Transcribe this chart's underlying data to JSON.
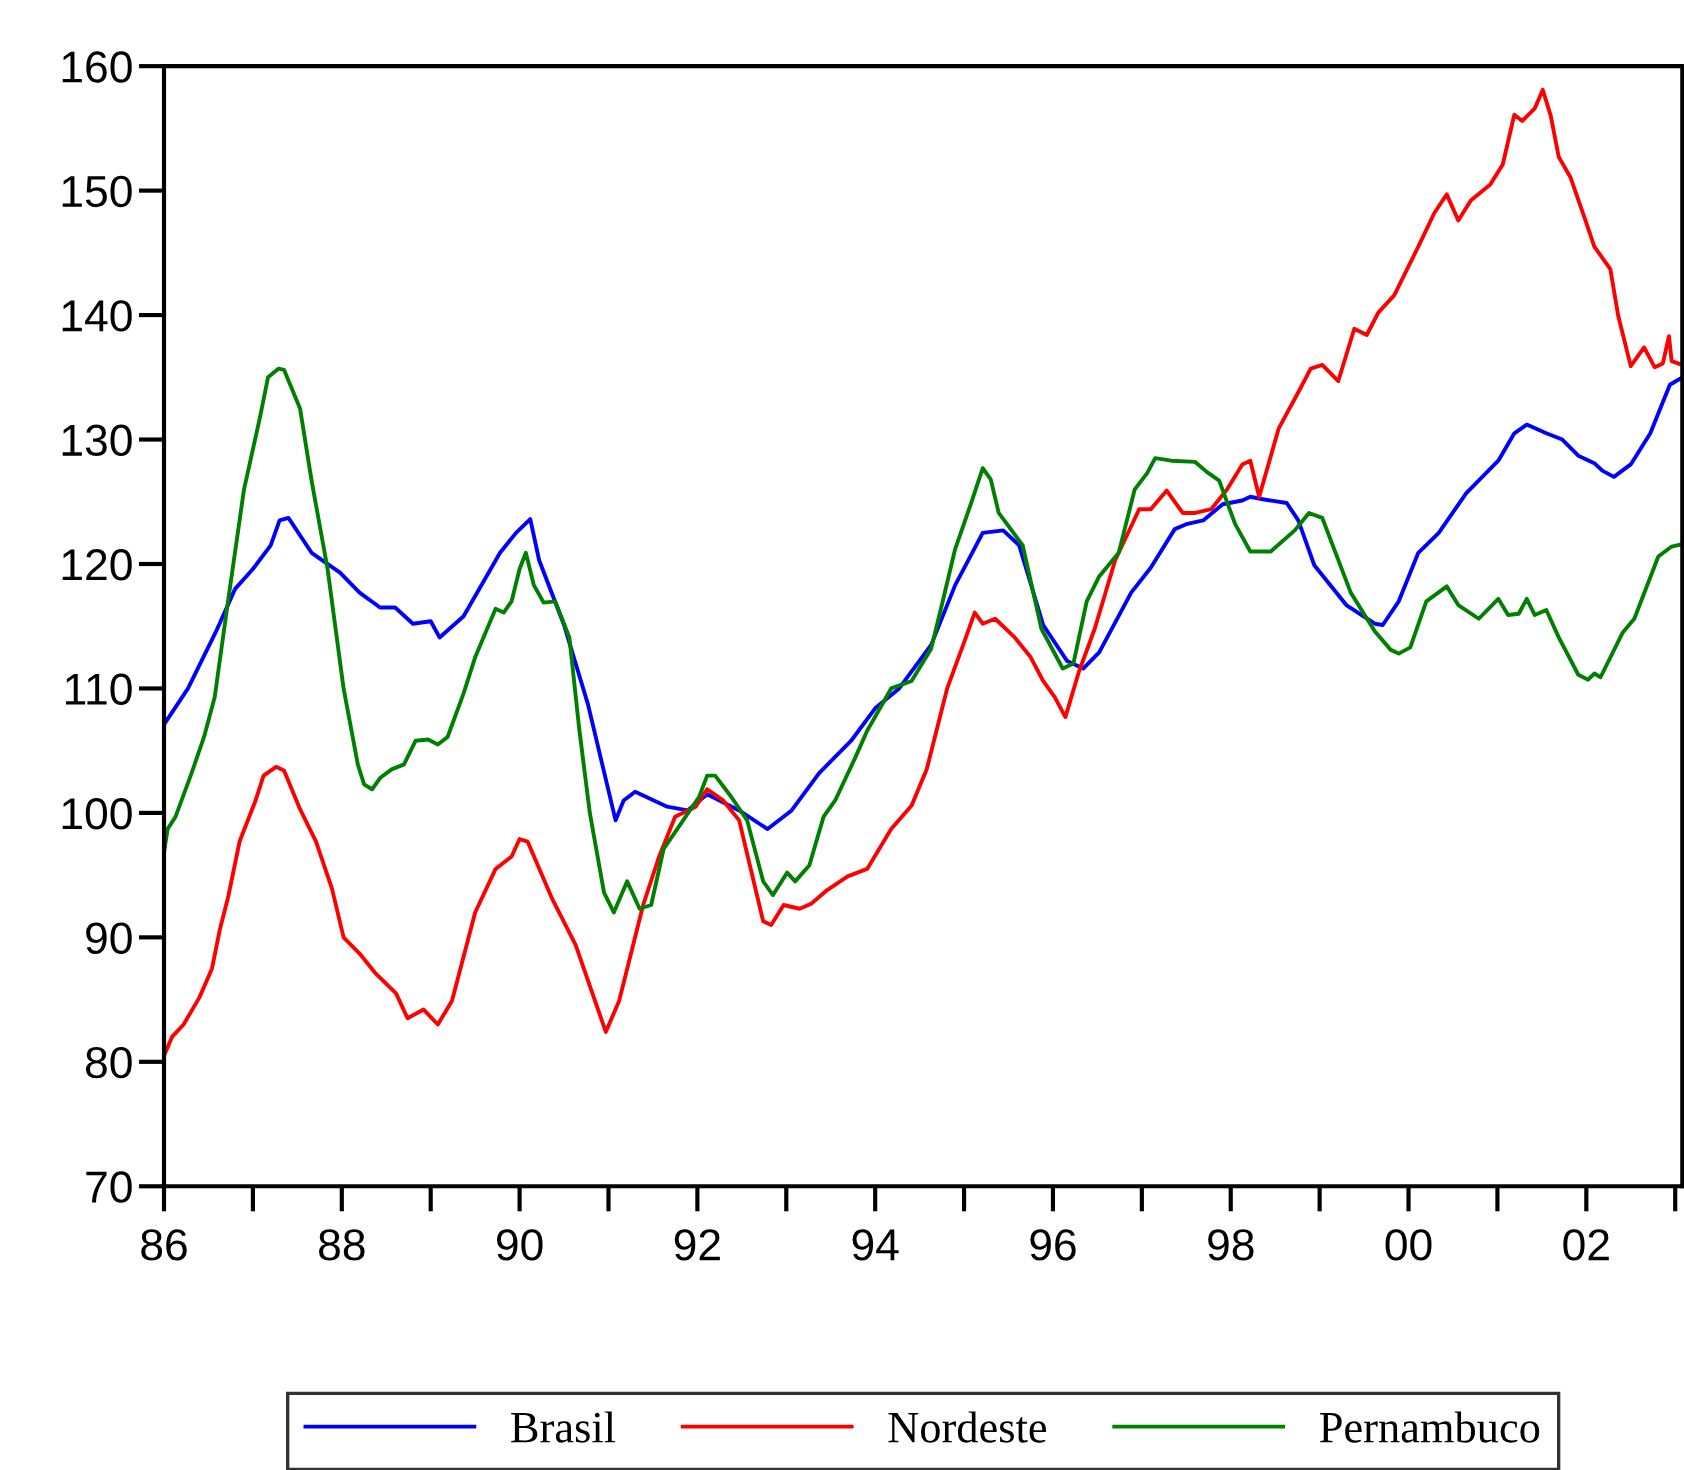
{
  "chart_data": {
    "type": "line",
    "xlim": [
      1986,
      2003.08
    ],
    "ylim": [
      70,
      160
    ],
    "yticks": [
      70,
      80,
      90,
      100,
      110,
      120,
      130,
      140,
      150,
      160
    ],
    "xticks": [
      {
        "value": 1986,
        "label": "86"
      },
      {
        "value": 1987,
        "label": null
      },
      {
        "value": 1988,
        "label": "88"
      },
      {
        "value": 1989,
        "label": null
      },
      {
        "value": 1990,
        "label": "90"
      },
      {
        "value": 1991,
        "label": null
      },
      {
        "value": 1992,
        "label": "92"
      },
      {
        "value": 1993,
        "label": null
      },
      {
        "value": 1994,
        "label": "94"
      },
      {
        "value": 1995,
        "label": null
      },
      {
        "value": 1996,
        "label": "96"
      },
      {
        "value": 1997,
        "label": null
      },
      {
        "value": 1998,
        "label": "98"
      },
      {
        "value": 1999,
        "label": null
      },
      {
        "value": 2000,
        "label": "00"
      },
      {
        "value": 2001,
        "label": null
      },
      {
        "value": 2002,
        "label": "02"
      },
      {
        "value": 2003,
        "label": null
      }
    ],
    "grid": false,
    "legend": "bottom",
    "line_style": "solid",
    "marker": "none",
    "series": [
      {
        "name": "Brasil",
        "color": "#0000ff",
        "x": [
          1986.0,
          1986.27,
          1986.58,
          1986.8,
          1987.0,
          1987.2,
          1987.3,
          1987.4,
          1987.66,
          1987.98,
          1988.2,
          1988.43,
          1988.6,
          1988.8,
          1989.0,
          1989.1,
          1989.37,
          1989.78,
          1989.96,
          1990.12,
          1990.22,
          1990.5,
          1990.77,
          1991.08,
          1991.17,
          1991.3,
          1991.66,
          1991.89,
          1992.11,
          1992.47,
          1992.79,
          1993.06,
          1993.37,
          1993.73,
          1994.0,
          1994.27,
          1994.63,
          1994.9,
          1995.21,
          1995.44,
          1995.62,
          1995.89,
          1996.16,
          1996.34,
          1996.52,
          1996.88,
          1997.1,
          1997.37,
          1997.5,
          1997.69,
          1997.91,
          1998.13,
          1998.22,
          1998.36,
          1998.63,
          1998.76,
          1998.94,
          1999.3,
          1999.62,
          1999.71,
          1999.89,
          2000.11,
          2000.34,
          2000.65,
          2001.01,
          2001.19,
          2001.33,
          2001.55,
          2001.73,
          2001.91,
          2002.09,
          2002.18,
          2002.31,
          2002.5,
          2002.72,
          2002.94,
          2003.08
        ],
        "values": [
          107.1,
          110,
          114.5,
          118,
          119.6,
          121.5,
          123.5,
          123.7,
          120.9,
          119.3,
          117.7,
          116.5,
          116.5,
          115.2,
          115.4,
          114.1,
          115.8,
          120.9,
          122.5,
          123.6,
          120.3,
          115.1,
          108.7,
          99.4,
          101,
          101.7,
          100.5,
          100.2,
          101.5,
          100.2,
          98.7,
          100.2,
          103.2,
          105.8,
          108.4,
          110,
          113.5,
          118.3,
          122.5,
          122.7,
          121.5,
          115.1,
          112.2,
          111.6,
          112.9,
          117.7,
          119.7,
          122.8,
          123.2,
          123.5,
          124.8,
          125.1,
          125.4,
          125.2,
          124.9,
          123.5,
          119.9,
          116.7,
          115.2,
          115.1,
          117,
          120.9,
          122.5,
          125.7,
          128.3,
          130.5,
          131.2,
          130.5,
          130,
          128.7,
          128.1,
          127.5,
          127,
          128,
          130.5,
          134.4,
          135
        ]
      },
      {
        "name": "Nordeste",
        "color": "#ff0000",
        "x": [
          1986.0,
          1986.09,
          1986.22,
          1986.4,
          1986.54,
          1986.63,
          1986.72,
          1986.85,
          1987.03,
          1987.12,
          1987.26,
          1987.35,
          1987.53,
          1987.71,
          1987.89,
          1988.02,
          1988.2,
          1988.38,
          1988.61,
          1988.74,
          1988.92,
          1989.08,
          1989.24,
          1989.5,
          1989.73,
          1989.91,
          1990.0,
          1990.09,
          1990.36,
          1990.63,
          1990.97,
          1991.12,
          1991.39,
          1991.57,
          1991.75,
          1991.98,
          1992.11,
          1992.29,
          1992.47,
          1992.74,
          1992.83,
          1992.97,
          1993.15,
          1993.28,
          1993.46,
          1993.69,
          1993.91,
          1994.18,
          1994.41,
          1994.58,
          1994.81,
          1994.99,
          1995.12,
          1995.21,
          1995.35,
          1995.57,
          1995.75,
          1995.89,
          1996.02,
          1996.14,
          1996.29,
          1996.47,
          1996.7,
          1996.97,
          1997.1,
          1997.28,
          1997.46,
          1997.6,
          1997.78,
          1997.96,
          1998.13,
          1998.22,
          1998.32,
          1998.54,
          1998.76,
          1998.9,
          1999.03,
          1999.21,
          1999.39,
          1999.53,
          1999.66,
          1999.84,
          2000.11,
          2000.29,
          2000.43,
          2000.56,
          2000.7,
          2000.92,
          2001.06,
          2001.19,
          2001.28,
          2001.42,
          2001.51,
          2001.6,
          2001.69,
          2001.82,
          2002.0,
          2002.09,
          2002.27,
          2002.36,
          2002.5,
          2002.65,
          2002.77,
          2002.86,
          2002.93,
          2002.96,
          2003.08
        ],
        "values": [
          80.5,
          82,
          83,
          85.2,
          87.5,
          90.7,
          93.2,
          97.7,
          101,
          103,
          103.7,
          103.4,
          100.3,
          97.7,
          93.9,
          90,
          88.7,
          87.1,
          85.5,
          83.5,
          84.2,
          83,
          84.9,
          92,
          95.5,
          96.5,
          97.9,
          97.7,
          93.2,
          89.4,
          82.4,
          84.9,
          92.6,
          96.5,
          99.7,
          100.5,
          101.9,
          101,
          99.4,
          91.3,
          91,
          92.6,
          92.3,
          92.7,
          93.8,
          94.9,
          95.5,
          98.7,
          100.6,
          103.5,
          110,
          113.5,
          116.1,
          115.2,
          115.6,
          114.1,
          112.5,
          110.6,
          109.3,
          107.7,
          111.3,
          114.8,
          120.3,
          124.4,
          124.4,
          125.9,
          124.1,
          124.1,
          124.4,
          126,
          128,
          128.3,
          125.4,
          130.9,
          133.8,
          135.7,
          136,
          134.7,
          138.9,
          138.4,
          140.2,
          141.6,
          145.5,
          148.2,
          149.7,
          147.6,
          149.2,
          150.5,
          152.1,
          156.1,
          155.6,
          156.6,
          158.1,
          156,
          152.7,
          151.1,
          147.4,
          145.5,
          143.7,
          139.9,
          135.9,
          137.4,
          135.8,
          136.1,
          138.3,
          136.3,
          136
        ]
      },
      {
        "name": "Pernambuco",
        "color": "#008000",
        "x": [
          1986.0,
          1986.04,
          1986.13,
          1986.31,
          1986.45,
          1986.57,
          1986.72,
          1986.9,
          1987.08,
          1987.17,
          1987.29,
          1987.35,
          1987.53,
          1987.66,
          1987.84,
          1988.02,
          1988.18,
          1988.25,
          1988.34,
          1988.43,
          1988.56,
          1988.7,
          1988.83,
          1988.97,
          1989.08,
          1989.19,
          1989.37,
          1989.5,
          1989.73,
          1989.82,
          1989.91,
          1990.0,
          1990.07,
          1990.16,
          1990.27,
          1990.4,
          1990.56,
          1990.67,
          1990.79,
          1990.95,
          1991.06,
          1991.21,
          1991.35,
          1991.48,
          1991.62,
          1991.84,
          1992.02,
          1992.11,
          1992.2,
          1992.38,
          1992.56,
          1992.74,
          1992.85,
          1993.01,
          1993.1,
          1993.26,
          1993.42,
          1993.55,
          1993.78,
          1993.91,
          1994.18,
          1994.41,
          1994.63,
          1994.76,
          1994.9,
          1995.08,
          1995.21,
          1995.3,
          1995.39,
          1995.66,
          1995.87,
          1996.11,
          1996.23,
          1996.38,
          1996.52,
          1996.74,
          1996.92,
          1997.06,
          1997.15,
          1997.33,
          1997.6,
          1997.73,
          1997.87,
          1998.05,
          1998.22,
          1998.45,
          1998.72,
          1998.88,
          1999.03,
          1999.35,
          1999.62,
          1999.8,
          1999.89,
          2000.02,
          2000.2,
          2000.43,
          2000.56,
          2000.79,
          2001.01,
          2001.12,
          2001.24,
          2001.33,
          2001.42,
          2001.55,
          2001.69,
          2001.91,
          2002.02,
          2002.09,
          2002.16,
          2002.41,
          2002.54,
          2002.81,
          2002.96,
          2003.08
        ],
        "values": [
          96.8,
          98.7,
          99.7,
          103.2,
          106.1,
          109.3,
          117,
          126,
          131.8,
          135,
          135.7,
          135.6,
          132.5,
          126.7,
          119.6,
          110,
          103.9,
          102.3,
          101.9,
          102.8,
          103.5,
          103.9,
          105.8,
          105.9,
          105.5,
          106.1,
          109.6,
          112.5,
          116.4,
          116.1,
          117,
          119.6,
          120.9,
          118.3,
          116.9,
          117,
          114.1,
          106.8,
          100,
          93.6,
          92,
          94.5,
          92.3,
          92.6,
          97.1,
          99.4,
          101.3,
          103,
          103,
          101.3,
          99.4,
          94.5,
          93.4,
          95.2,
          94.5,
          95.8,
          99.7,
          101,
          104.5,
          106.6,
          110,
          110.6,
          113.2,
          117,
          121.2,
          124.9,
          127.7,
          126.8,
          124.1,
          121.5,
          114.8,
          111.6,
          112,
          117,
          119,
          120.9,
          126,
          127.3,
          128.5,
          128.3,
          128.2,
          127.4,
          126.7,
          123.2,
          121,
          121,
          122.7,
          124.1,
          123.7,
          117.7,
          114.6,
          113.1,
          112.8,
          113.3,
          117,
          118.2,
          116.7,
          115.6,
          117.2,
          115.9,
          116,
          117.2,
          115.9,
          116.3,
          114.1,
          111.1,
          110.7,
          111.2,
          110.9,
          114.5,
          115.6,
          120.6,
          121.4,
          121.6
        ]
      }
    ]
  }
}
